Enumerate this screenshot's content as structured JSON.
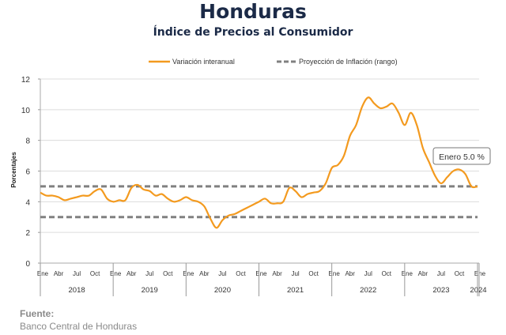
{
  "header": {
    "title": "Honduras",
    "subtitle": "Índice de Precios al Consumidor"
  },
  "source": {
    "label": "Fuente:",
    "text": "Banco Central de Honduras"
  },
  "chart_data": {
    "type": "line",
    "title": "Honduras",
    "subtitle": "Índice de Precios al Consumidor",
    "ylabel": "Porcentajes",
    "xlabel": "",
    "ylim": [
      0,
      12
    ],
    "yticks": [
      0,
      2,
      4,
      6,
      8,
      10,
      12
    ],
    "grid": true,
    "legend_placement": "top",
    "month_labels": [
      "Ene",
      "Abr",
      "Jul",
      "Oct"
    ],
    "years": [
      "2018",
      "2019",
      "2020",
      "2021",
      "2022",
      "2023",
      "2024"
    ],
    "last_month_label": "Ene",
    "x_start": "2018-01",
    "x_end": "2024-01",
    "series": [
      {
        "name": "Variación interanual",
        "color": "#f39a1f",
        "style": "solid",
        "values": [
          4.6,
          4.4,
          4.4,
          4.3,
          4.1,
          4.2,
          4.3,
          4.4,
          4.4,
          4.7,
          4.8,
          4.2,
          4.0,
          4.1,
          4.1,
          4.9,
          5.1,
          4.8,
          4.7,
          4.4,
          4.5,
          4.2,
          4.0,
          4.1,
          4.3,
          4.1,
          4.0,
          3.7,
          2.9,
          2.3,
          2.8,
          3.1,
          3.2,
          3.4,
          3.6,
          3.8,
          4.0,
          4.2,
          3.9,
          3.9,
          4.0,
          4.9,
          4.7,
          4.3,
          4.5,
          4.6,
          4.7,
          5.2,
          6.2,
          6.4,
          7.0,
          8.3,
          9.0,
          10.2,
          10.8,
          10.4,
          10.1,
          10.2,
          10.4,
          9.8,
          9.0,
          9.8,
          9.0,
          7.5,
          6.6,
          5.7,
          5.2,
          5.6,
          6.0,
          6.1,
          5.8,
          5.0,
          5.0
        ]
      },
      {
        "name": "Proyección de Inflación (rango)",
        "color": "#808080",
        "style": "dashed",
        "values": [
          3,
          5
        ]
      }
    ],
    "annotation": "Enero 5.0 %"
  }
}
